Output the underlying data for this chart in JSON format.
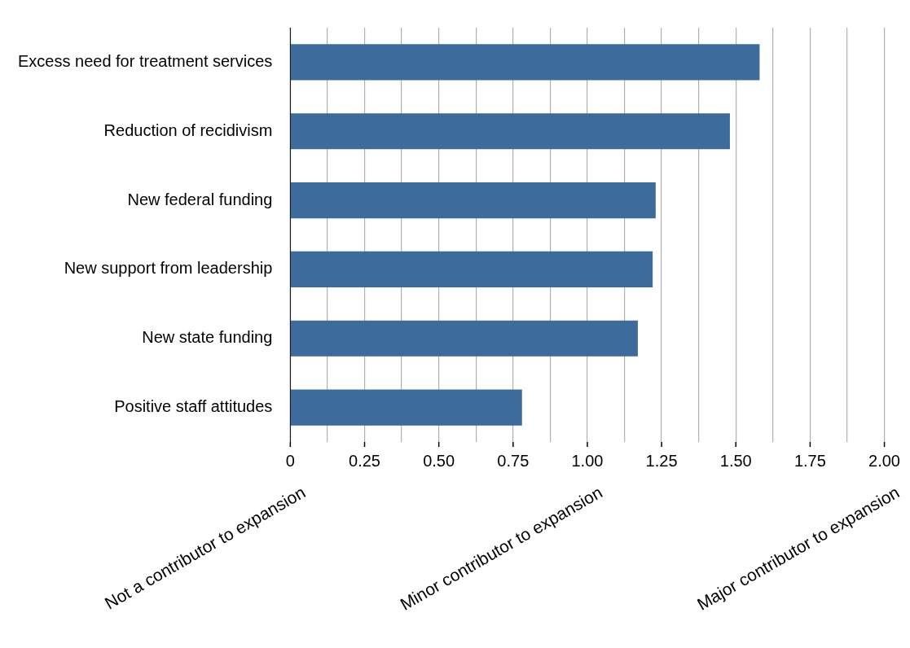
{
  "chart_data": {
    "type": "bar",
    "orientation": "horizontal",
    "categories": [
      "Excess need for treatment services",
      "Reduction of recidivism",
      "New federal funding",
      "New support from leadership",
      "New state funding",
      "Positive staff attitudes"
    ],
    "values": [
      1.58,
      1.48,
      1.23,
      1.22,
      1.17,
      0.78
    ],
    "color": "#3d6b9b",
    "xlim": [
      0,
      2
    ],
    "xticks": [
      0,
      {
        "value": 0.125,
        "label": null
      },
      "0.25",
      {
        "value": 0.375,
        "label": null
      },
      {
        "value": 0.5,
        "label": "0.50"
      },
      {
        "value": 0.625,
        "label": null
      },
      {
        "value": 0.75,
        "label": "0.75"
      },
      {
        "value": 0.875,
        "label": null
      },
      {
        "value": 1,
        "label": "1.00"
      },
      {
        "value": 1.125,
        "label": null
      },
      {
        "value": 1.25,
        "label": "1.25"
      },
      {
        "value": 1.375,
        "label": null
      },
      {
        "value": 1.5,
        "label": "1.50"
      },
      {
        "value": 1.625,
        "label": null
      },
      {
        "value": 1.75,
        "label": "1.75"
      },
      {
        "value": 1.875,
        "label": null
      },
      {
        "value": 2,
        "label": "2.00"
      }
    ],
    "grid": "x",
    "legend": false,
    "annotations": [
      "Not a contributor to expansion",
      "Minor contributor to expansion",
      "Major contributor to expansion"
    ]
  }
}
